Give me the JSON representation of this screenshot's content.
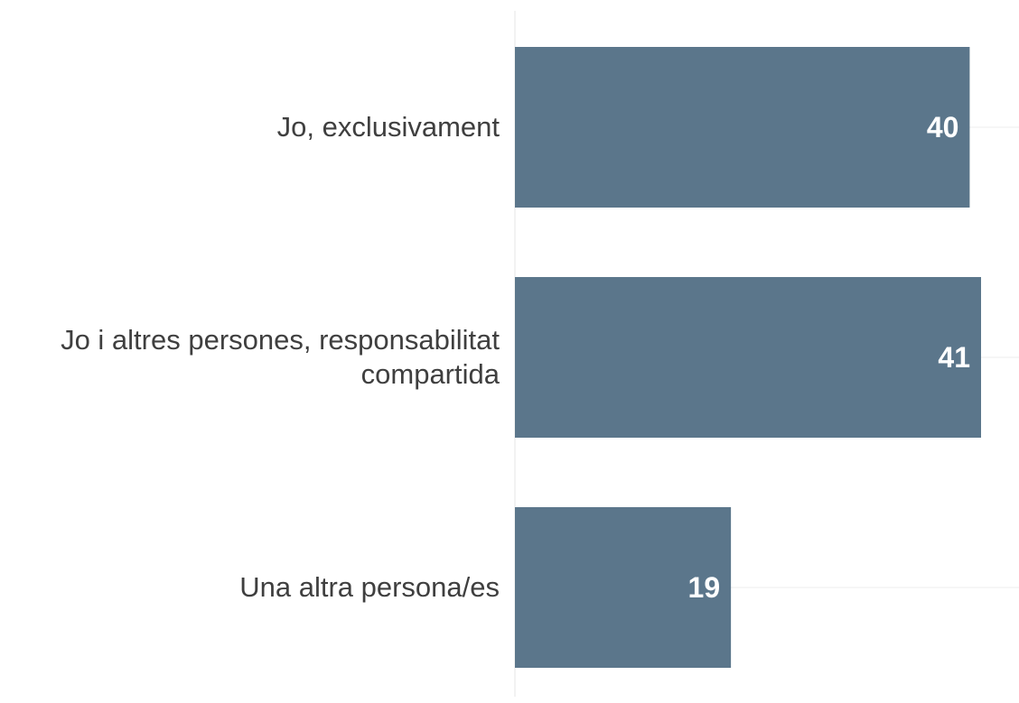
{
  "chart_data": {
    "type": "bar",
    "orientation": "horizontal",
    "categories": [
      "Jo, exclusivament",
      "Jo i altres persones, responsabilitat compartida",
      "Una altra persona/es"
    ],
    "category_label_lines": [
      [
        "Jo, exclusivament"
      ],
      [
        "Jo i altres persones, responsabilitat",
        "compartida"
      ],
      [
        "Una altra persona/es"
      ]
    ],
    "values": [
      40,
      41,
      19
    ],
    "value_labels": [
      "40",
      "41",
      "19"
    ],
    "xlim": [
      0,
      41
    ],
    "grid": true,
    "legend": "none"
  },
  "colors": {
    "bar": "#5b768b",
    "value_label": "#ffffff",
    "category_label": "#3f3f3f",
    "gridline": "#ececec",
    "axis_line": "#e6e6e6"
  }
}
